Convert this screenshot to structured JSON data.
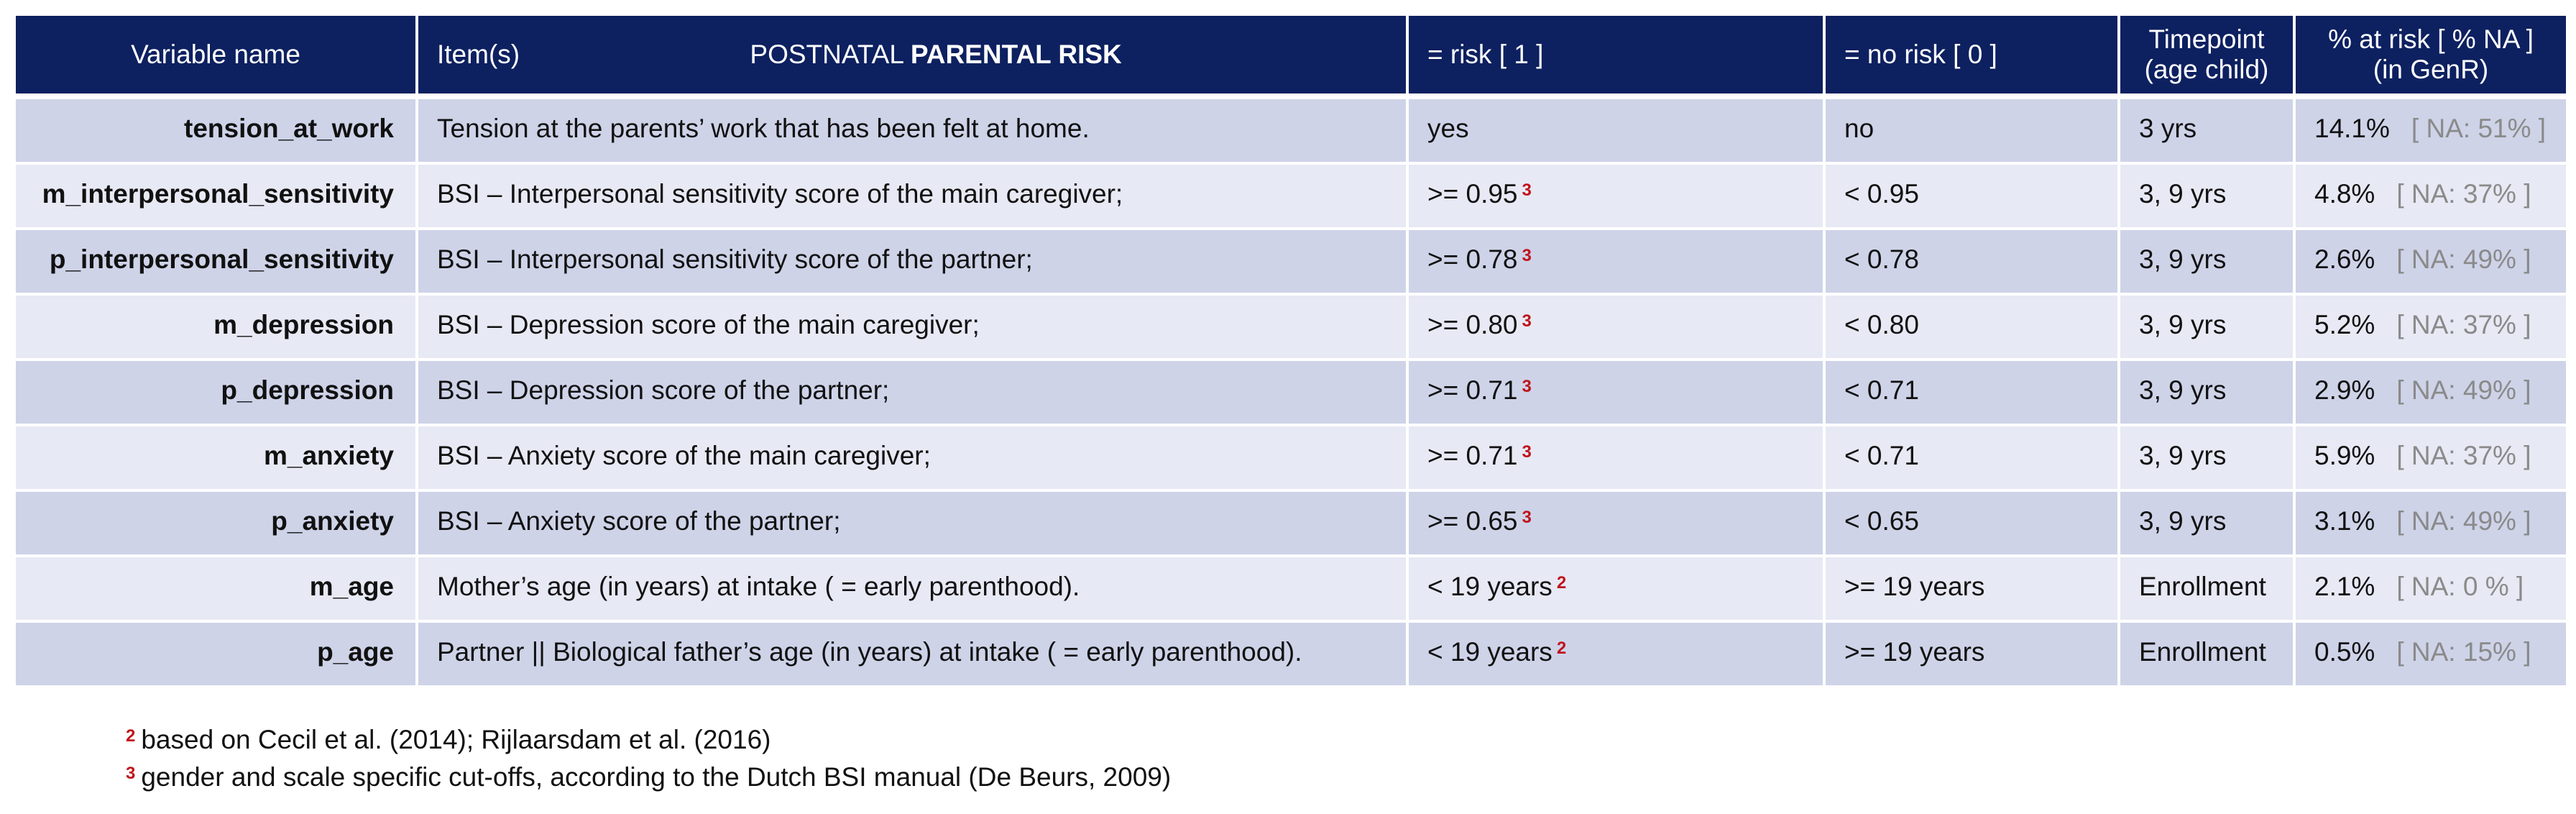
{
  "header": {
    "variable_name": "Variable name",
    "items": "Item(s)",
    "subtitle_prefix": "POSTNATAL ",
    "subtitle_bold": "PARENTAL RISK",
    "risk": "= risk [ 1 ]",
    "no_risk": "= no risk [ 0 ]",
    "timepoint_line1": "Timepoint",
    "timepoint_line2": "(age child)",
    "pct_line1": "% at risk [ % NA ]",
    "pct_line2": "(in GenR)"
  },
  "rows": [
    {
      "variable": "tension_at_work",
      "item": "Tension at the parents’ work that has been felt at home.",
      "risk": "yes",
      "risk_sup": "",
      "no_risk": "no",
      "timepoint": "3 yrs",
      "pct": "14.1%",
      "na": "[ NA: 51% ]"
    },
    {
      "variable": "m_interpersonal_sensitivity",
      "item": "BSI – Interpersonal sensitivity score of the main caregiver;",
      "risk": ">= 0.95",
      "risk_sup": "3",
      "no_risk": "< 0.95",
      "timepoint": "3,  9 yrs",
      "pct": "4.8%",
      "na": "[ NA: 37% ]"
    },
    {
      "variable": "p_interpersonal_sensitivity",
      "item": "BSI – Interpersonal sensitivity score of the partner;",
      "risk": ">= 0.78",
      "risk_sup": "3",
      "no_risk": "< 0.78",
      "timepoint": "3,  9 yrs",
      "pct": "2.6%",
      "na": "[ NA: 49% ]"
    },
    {
      "variable": "m_depression",
      "item": "BSI – Depression score of the main caregiver;",
      "risk": ">= 0.80",
      "risk_sup": "3",
      "no_risk": "< 0.80",
      "timepoint": "3,  9 yrs",
      "pct": "5.2%",
      "na": "[ NA: 37% ]"
    },
    {
      "variable": "p_depression",
      "item": "BSI – Depression score of the partner;",
      "risk": ">= 0.71",
      "risk_sup": "3",
      "no_risk": "< 0.71",
      "timepoint": "3,  9 yrs",
      "pct": "2.9%",
      "na": "[ NA: 49% ]"
    },
    {
      "variable": "m_anxiety",
      "item": "BSI – Anxiety score of the main caregiver;",
      "risk": ">= 0.71",
      "risk_sup": "3",
      "no_risk": "< 0.71",
      "timepoint": "3,  9 yrs",
      "pct": "5.9%",
      "na": "[ NA: 37% ]"
    },
    {
      "variable": "p_anxiety",
      "item": "BSI – Anxiety score of the partner;",
      "risk": ">= 0.65",
      "risk_sup": "3",
      "no_risk": "< 0.65",
      "timepoint": "3,  9 yrs",
      "pct": "3.1%",
      "na": "[ NA: 49% ]"
    },
    {
      "variable": "m_age",
      "item": "Mother’s age (in years) at intake ( = early parenthood).",
      "risk": "< 19 years",
      "risk_sup": "2",
      "no_risk": ">= 19 years",
      "timepoint": "Enrollment",
      "pct": "2.1%",
      "na": "[ NA:  0 % ]"
    },
    {
      "variable": "p_age",
      "item": "Partner || Biological father’s age (in years) at intake ( = early parenthood).",
      "risk": "< 19 years",
      "risk_sup": "2",
      "no_risk": ">= 19 years",
      "timepoint": "Enrollment",
      "pct": "0.5%",
      "na": "[ NA: 15% ]"
    }
  ],
  "footnotes": [
    {
      "mark": "2",
      "text": "based on Cecil et al. (2014); Rijlaarsdam et al. (2016)"
    },
    {
      "mark": "3",
      "text": "gender and scale specific cut-offs, according to the Dutch BSI manual (De Beurs, 2009)"
    }
  ],
  "colors": {
    "header_bg": "#0d2060",
    "row_dark": "#ced3e8",
    "row_light": "#e7e9f4",
    "superscript": "#c0141c",
    "na_text": "#8a8a8a"
  }
}
